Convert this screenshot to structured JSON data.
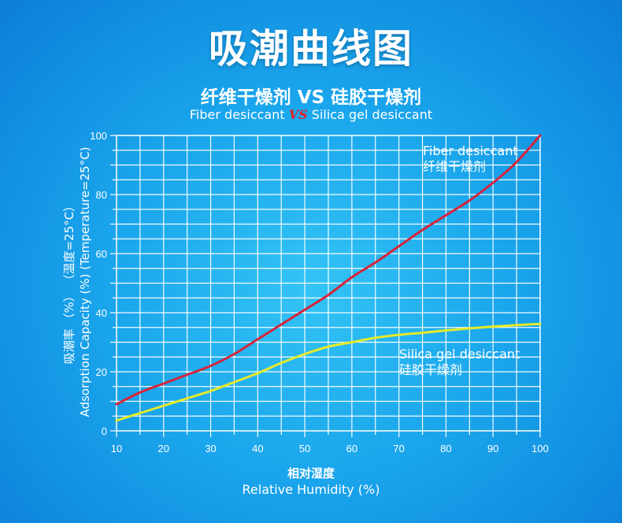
{
  "header": {
    "title": "吸潮曲线图",
    "subtitle_cn": "纤维干燥剂 VS 硅胶干燥剂",
    "subtitle_en_left": "Fiber desiccant",
    "subtitle_en_vs": "VS",
    "subtitle_en_right": "Silica gel desiccant"
  },
  "colors": {
    "fiber": "#d8233a",
    "silica": "#e6ea2a",
    "grid": "#ffffff",
    "background": "#1aa6ec"
  },
  "chart_data": {
    "type": "line",
    "xlabel_cn": "相对湿度",
    "xlabel_en": "Relative Humidity (%)",
    "ylabel_cn": "吸潮率 （%） （温度=25°C）",
    "ylabel_en": "Adsorption Capacity (%) (Temperature=25°C)",
    "xlim": [
      10,
      100
    ],
    "ylim": [
      0,
      100
    ],
    "x_ticks": [
      "10",
      "20",
      "30",
      "40",
      "50",
      "60",
      "70",
      "80",
      "90",
      "100"
    ],
    "y_ticks": [
      "0",
      "20",
      "40",
      "60",
      "80",
      "100"
    ],
    "grid": true,
    "series": [
      {
        "name": "Fiber desiccant",
        "name_cn": "纤维干燥剂",
        "x": [
          10,
          15,
          20,
          25,
          30,
          35,
          40,
          45,
          50,
          55,
          60,
          65,
          70,
          75,
          80,
          85,
          90,
          95,
          100
        ],
        "y": [
          9,
          13,
          16,
          19,
          22,
          26,
          31,
          36,
          41,
          46,
          52,
          57,
          62.5,
          68,
          73,
          78,
          84,
          91,
          100
        ]
      },
      {
        "name": "Silica gel desiccant",
        "name_cn": "硅胶干燥剂",
        "x": [
          10,
          15,
          20,
          25,
          30,
          35,
          40,
          45,
          50,
          55,
          60,
          65,
          70,
          75,
          80,
          85,
          90,
          95,
          100
        ],
        "y": [
          3.5,
          6,
          8.5,
          11,
          13.5,
          16.5,
          19.5,
          23,
          26,
          28.5,
          30,
          31.5,
          32.5,
          33.2,
          34,
          34.7,
          35.3,
          35.8,
          36.2
        ]
      }
    ]
  }
}
